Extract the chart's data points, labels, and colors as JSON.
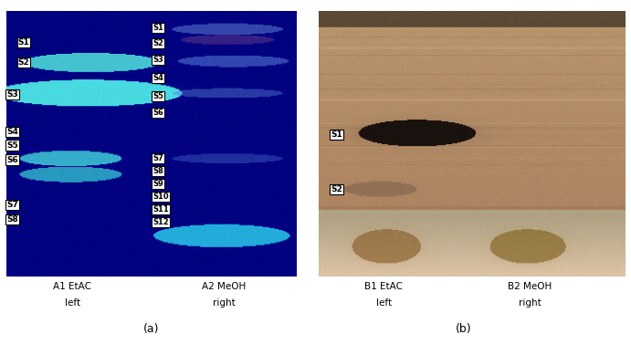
{
  "fig_width": 6.91,
  "fig_height": 3.89,
  "dpi": 100,
  "panel_a_bg": [
    0,
    0,
    120
  ],
  "caption_a": "(a)",
  "caption_b": "(b)",
  "label_a1_line1": "A1 EtAC",
  "label_a1_line2": "left",
  "label_a2_line1": "A2 MeOH",
  "label_a2_line2": "right",
  "label_b1_line1": "B1 EtAC",
  "label_b1_line2": "left",
  "label_b2_line1": "B2 MeOH",
  "label_b2_line2": "right"
}
